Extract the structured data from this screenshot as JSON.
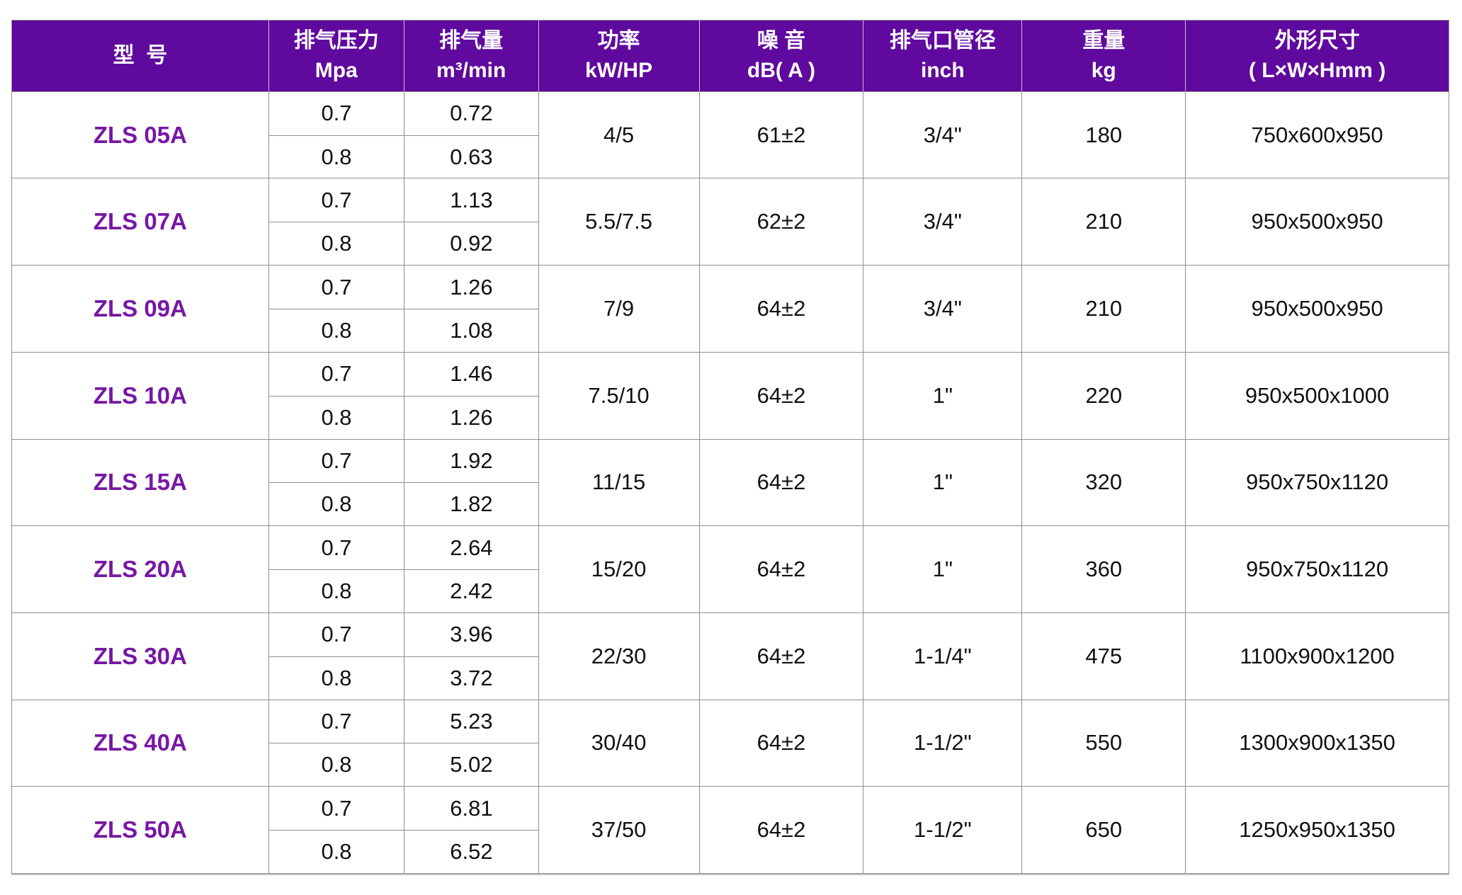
{
  "colors": {
    "header_bg": "#60099e",
    "header_text": "#ffffff",
    "model_text": "#7717a5",
    "body_text": "#111111",
    "grid_line": "#8f8f8f"
  },
  "header": {
    "columns": [
      {
        "line1": "型  号",
        "line2": ""
      },
      {
        "line1": "排气压力",
        "line2": "Mpa"
      },
      {
        "line1": "排气量",
        "line2": "m³/min"
      },
      {
        "line1": "功率",
        "line2": "kW/HP"
      },
      {
        "line1": "噪 音",
        "line2": "dB( A )"
      },
      {
        "line1": "排气口管径",
        "line2": "inch"
      },
      {
        "line1": "重量",
        "line2": "kg"
      },
      {
        "line1": "外形尺寸",
        "line2": "( L×W×Hmm )"
      }
    ]
  },
  "rows": [
    {
      "model": "ZLS 05A",
      "sub": [
        {
          "pressure": "0.7",
          "volume": "0.72"
        },
        {
          "pressure": "0.8",
          "volume": "0.63"
        }
      ],
      "power": "4/5",
      "noise": "61±2",
      "pipe": "3/4\"",
      "weight": "180",
      "dims": "750x600x950"
    },
    {
      "model": "ZLS 07A",
      "sub": [
        {
          "pressure": "0.7",
          "volume": "1.13"
        },
        {
          "pressure": "0.8",
          "volume": "0.92"
        }
      ],
      "power": "5.5/7.5",
      "noise": "62±2",
      "pipe": "3/4\"",
      "weight": "210",
      "dims": "950x500x950"
    },
    {
      "model": "ZLS 09A",
      "sub": [
        {
          "pressure": "0.7",
          "volume": "1.26"
        },
        {
          "pressure": "0.8",
          "volume": "1.08"
        }
      ],
      "power": "7/9",
      "noise": "64±2",
      "pipe": "3/4\"",
      "weight": "210",
      "dims": "950x500x950"
    },
    {
      "model": "ZLS 10A",
      "sub": [
        {
          "pressure": "0.7",
          "volume": "1.46"
        },
        {
          "pressure": "0.8",
          "volume": "1.26"
        }
      ],
      "power": "7.5/10",
      "noise": "64±2",
      "pipe": "1\"",
      "weight": "220",
      "dims": "950x500x1000"
    },
    {
      "model": "ZLS 15A",
      "sub": [
        {
          "pressure": "0.7",
          "volume": "1.92"
        },
        {
          "pressure": "0.8",
          "volume": "1.82"
        }
      ],
      "power": "11/15",
      "noise": "64±2",
      "pipe": "1\"",
      "weight": "320",
      "dims": "950x750x1120"
    },
    {
      "model": "ZLS 20A",
      "sub": [
        {
          "pressure": "0.7",
          "volume": "2.64"
        },
        {
          "pressure": "0.8",
          "volume": "2.42"
        }
      ],
      "power": "15/20",
      "noise": "64±2",
      "pipe": "1\"",
      "weight": "360",
      "dims": "950x750x1120"
    },
    {
      "model": "ZLS 30A",
      "sub": [
        {
          "pressure": "0.7",
          "volume": "3.96"
        },
        {
          "pressure": "0.8",
          "volume": "3.72"
        }
      ],
      "power": "22/30",
      "noise": "64±2",
      "pipe": "1-1/4\"",
      "weight": "475",
      "dims": "1100x900x1200"
    },
    {
      "model": "ZLS 40A",
      "sub": [
        {
          "pressure": "0.7",
          "volume": "5.23"
        },
        {
          "pressure": "0.8",
          "volume": "5.02"
        }
      ],
      "power": "30/40",
      "noise": "64±2",
      "pipe": "1-1/2\"",
      "weight": "550",
      "dims": "1300x900x1350"
    },
    {
      "model": "ZLS 50A",
      "sub": [
        {
          "pressure": "0.7",
          "volume": "6.81"
        },
        {
          "pressure": "0.8",
          "volume": "6.52"
        }
      ],
      "power": "37/50",
      "noise": "64±2",
      "pipe": "1-1/2\"",
      "weight": "650",
      "dims": "1250x950x1350"
    }
  ]
}
